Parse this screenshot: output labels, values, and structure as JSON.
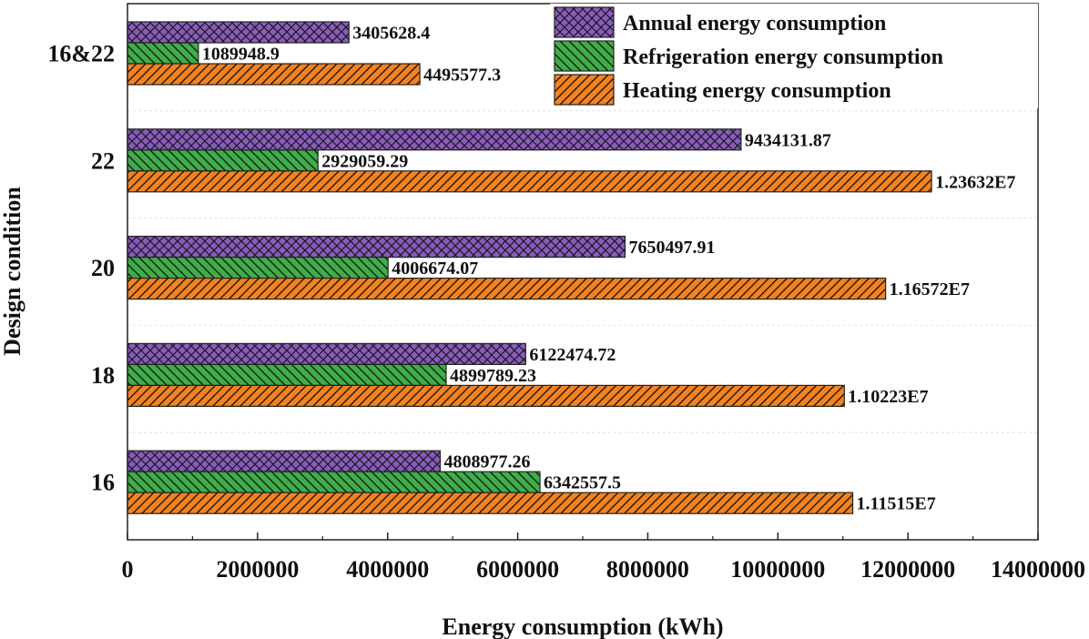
{
  "chart_data": {
    "type": "bar",
    "orientation": "horizontal",
    "xlabel": "Energy consumption (kWh)",
    "ylabel": "Design condition",
    "xlim": [
      0,
      14000000
    ],
    "xticks": [
      "0",
      "2000000",
      "4000000",
      "6000000",
      "8000000",
      "10000000",
      "12000000",
      "14000000"
    ],
    "categories": [
      "16",
      "18",
      "20",
      "22",
      "16&22"
    ],
    "legend_position": "top-right",
    "series": [
      {
        "name": "Annual energy consumption",
        "color": "#8a5bbf",
        "pattern": "crosshatch",
        "values": [
          4808977.26,
          6122474.72,
          7650497.91,
          9434131.87,
          3405628.4
        ],
        "labels": [
          "4808977.26",
          "6122474.72",
          "7650497.91",
          "9434131.87",
          "3405628.4"
        ]
      },
      {
        "name": "Refrigeration energy consumption",
        "color": "#3fae49",
        "pattern": "back-diagonal",
        "values": [
          6342557.5,
          4899789.23,
          4006674.07,
          2929059.29,
          1089948.9
        ],
        "labels": [
          "6342557.5",
          "4899789.23",
          "4006674.07",
          "2929059.29",
          "1089948.9"
        ]
      },
      {
        "name": "Heating energy consumption",
        "color": "#f5821f",
        "pattern": "forward-diagonal",
        "values": [
          11151500,
          11022300,
          11657200,
          12363200,
          4495577.3
        ],
        "labels": [
          "1.11515E7",
          "1.10223E7",
          "1.16572E7",
          "1.23632E7",
          "4495577.3"
        ]
      }
    ]
  }
}
